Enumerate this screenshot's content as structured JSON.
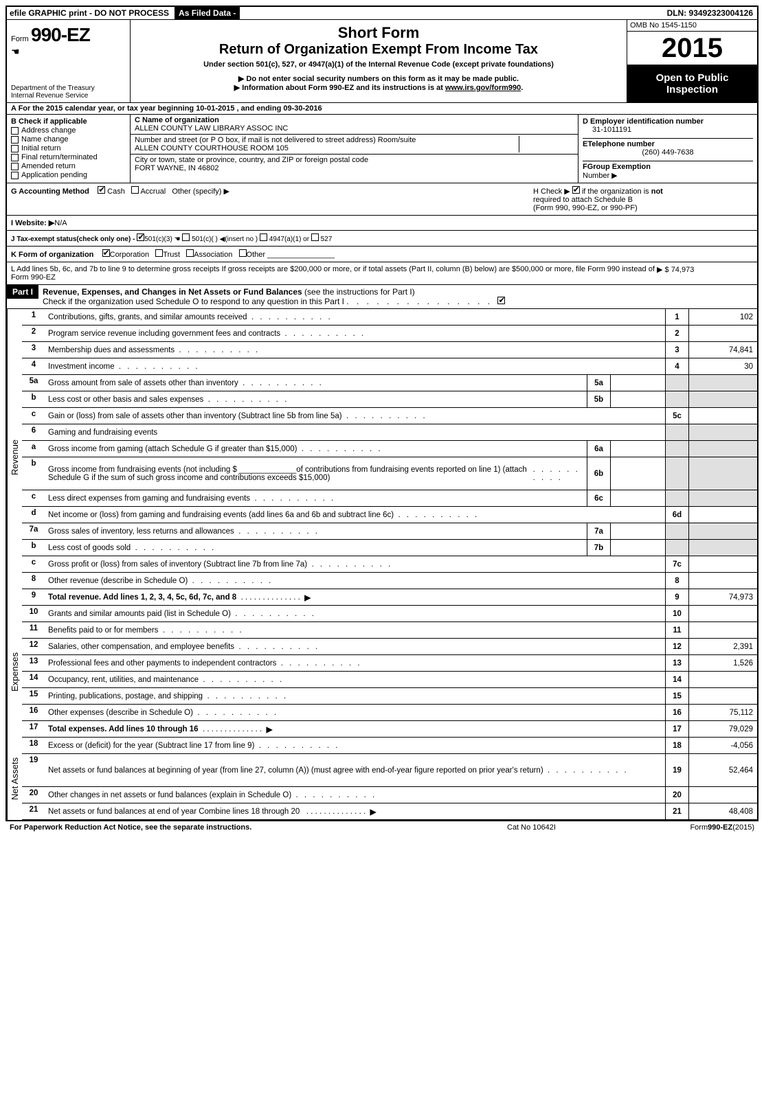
{
  "top": {
    "efile": "efile GRAPHIC print - DO NOT PROCESS",
    "asfiled": "As Filed Data -",
    "dln": "DLN: 93492323004126"
  },
  "header": {
    "form_word": "Form",
    "form_no": "990-EZ",
    "dept1": "Department of the Treasury",
    "dept2": "Internal Revenue Service",
    "short_form": "Short Form",
    "title": "Return of Organization Exempt From Income Tax",
    "under": "Under section 501(c), 527, or 4947(a)(1) of the Internal Revenue Code (except private foundations)",
    "no_ssn": "▶ Do not enter social security numbers on this form as it may be made public.",
    "info": "▶ Information about Form 990-EZ and its instructions is at ",
    "info_link": "www.irs.gov/form990",
    "omb": "OMB No 1545-1150",
    "year": "2015",
    "open1": "Open to Public",
    "open2": "Inspection"
  },
  "lineA": "A  For the 2015 calendar year, or tax year beginning 10-01-2015                         , and ending 09-30-2016",
  "sectionB": {
    "b_head": "B  Check if applicable",
    "b_items": [
      "Address change",
      "Name change",
      "Initial return",
      "Final return/terminated",
      "Amended return",
      "Application pending"
    ],
    "c_name_lbl": "C Name of organization",
    "c_name": "ALLEN COUNTY LAW LIBRARY ASSOC INC",
    "c_addr_lbl": "Number and street (or P O box, if mail is not delivered to street address) Room/suite",
    "c_addr": "ALLEN COUNTY COURTHOUSE ROOM 105",
    "c_city_lbl": "City or town, state or province, country, and ZIP or foreign postal code",
    "c_city": "FORT WAYNE, IN  46802",
    "d_lbl": "D Employer identification number",
    "d_val": "31-1011191",
    "e_lbl": "ETelephone number",
    "e_val": "(260) 449-7638",
    "f_lbl": "FGroup Exemption",
    "f_lbl2": "Number   ▶"
  },
  "rowG": {
    "g": "G Accounting Method",
    "cash": "Cash",
    "accrual": "Accrual",
    "other": "Other (specify) ▶",
    "h1": "H   Check ▶",
    "h2": "if the organization is",
    "not": "not",
    "h3": "required to attach Schedule B",
    "h4": "(Form 990, 990-EZ, or 990-PF)"
  },
  "rowI": {
    "label": "I Website: ▶",
    "val": "N/A"
  },
  "rowJ": "J Tax-exempt status(check only one) - ",
  "rowJ_501c3": "501(c)(3)",
  "rowJ_501c": "501(c)( ) ◀(insert no )",
  "rowJ_4947": "4947(a)(1) or",
  "rowJ_527": "527",
  "rowK": {
    "label": "K Form of organization",
    "corp": "Corporation",
    "trust": "Trust",
    "assoc": "Association",
    "other": "Other"
  },
  "rowL": {
    "text": "L Add lines 5b, 6c, and 7b to line 9 to determine gross receipts  If gross receipts are $200,000 or more, or if total assets (Part II, column (B) below) are $500,000 or more, file Form 990 instead of Form 990-EZ",
    "arrow": "▶ $ 74,973"
  },
  "partI": {
    "label": "Part I",
    "title": "Revenue, Expenses, and Changes in Net Assets or Fund Balances",
    "paren": "(see the instructions for Part I)",
    "check": "Check if the organization used Schedule O to respond to any question in this Part I"
  },
  "sections": {
    "revenue": "Revenue",
    "expenses": "Expenses",
    "netassets": "Net Assets"
  },
  "lines": [
    {
      "n": "1",
      "d": "Contributions, gifts, grants, and similar amounts received",
      "r": "1",
      "v": "102"
    },
    {
      "n": "2",
      "d": "Program service revenue including government fees and contracts",
      "r": "2",
      "v": ""
    },
    {
      "n": "3",
      "d": "Membership dues and assessments",
      "r": "3",
      "v": "74,841"
    },
    {
      "n": "4",
      "d": "Investment income",
      "r": "4",
      "v": "30"
    },
    {
      "n": "5a",
      "d": "Gross amount from sale of assets other than inventory",
      "mb": "5a",
      "grey": true
    },
    {
      "n": "b",
      "d": "Less  cost or other basis and sales expenses",
      "mb": "5b",
      "grey": true
    },
    {
      "n": "c",
      "d": "Gain or (loss) from sale of assets other than inventory (Subtract line 5b from line 5a)",
      "r": "5c",
      "v": ""
    },
    {
      "n": "6",
      "d": "Gaming and fundraising events",
      "nobox": true,
      "grey": true
    },
    {
      "n": "a",
      "d": "Gross income from gaming (attach Schedule G if greater than $15,000)",
      "mb": "6a",
      "grey": true
    },
    {
      "n": "b",
      "d": "Gross income from fundraising events (not including $ _____________of contributions from fundraising events reported on line 1) (attach Schedule G if the sum of such gross income and contributions exceeds $15,000)",
      "mb": "6b",
      "grey": true,
      "tall": true
    },
    {
      "n": "c",
      "d": "Less  direct expenses from gaming and fundraising events",
      "mb": "6c",
      "grey": true
    },
    {
      "n": "d",
      "d": "Net income or (loss) from gaming and fundraising events (add lines 6a and 6b and subtract line 6c)",
      "r": "6d",
      "v": ""
    },
    {
      "n": "7a",
      "d": "Gross sales of inventory, less returns and allowances",
      "mb": "7a",
      "grey": true
    },
    {
      "n": "b",
      "d": "Less  cost of goods sold",
      "mb": "7b",
      "grey": true
    },
    {
      "n": "c",
      "d": "Gross profit or (loss) from sales of inventory (Subtract line 7b from line 7a)",
      "r": "7c",
      "v": ""
    },
    {
      "n": "8",
      "d": "Other revenue (describe in Schedule O)",
      "r": "8",
      "v": ""
    },
    {
      "n": "9",
      "d": "Total revenue. Add lines 1, 2, 3, 4, 5c, 6d, 7c, and 8",
      "r": "9",
      "v": "74,973",
      "bold": true,
      "arrow": true
    }
  ],
  "exp_lines": [
    {
      "n": "10",
      "d": "Grants and similar amounts paid (list in Schedule O)",
      "r": "10",
      "v": ""
    },
    {
      "n": "11",
      "d": "Benefits paid to or for members",
      "r": "11",
      "v": ""
    },
    {
      "n": "12",
      "d": "Salaries, other compensation, and employee benefits",
      "r": "12",
      "v": "2,391"
    },
    {
      "n": "13",
      "d": "Professional fees and other payments to independent contractors",
      "r": "13",
      "v": "1,526"
    },
    {
      "n": "14",
      "d": "Occupancy, rent, utilities, and maintenance",
      "r": "14",
      "v": ""
    },
    {
      "n": "15",
      "d": "Printing, publications, postage, and shipping",
      "r": "15",
      "v": ""
    },
    {
      "n": "16",
      "d": "Other expenses (describe in Schedule O)",
      "r": "16",
      "v": "75,112"
    },
    {
      "n": "17",
      "d": "Total expenses. Add lines 10 through 16",
      "r": "17",
      "v": "79,029",
      "bold": true,
      "arrow": true
    }
  ],
  "na_lines": [
    {
      "n": "18",
      "d": "Excess or (deficit) for the year (Subtract line 17 from line 9)",
      "r": "18",
      "v": "-4,056"
    },
    {
      "n": "19",
      "d": "Net assets or fund balances at beginning of year (from line 27, column (A)) (must agree with end-of-year figure reported on prior year's return)",
      "r": "19",
      "v": "52,464",
      "tall": true
    },
    {
      "n": "20",
      "d": "Other changes in net assets or fund balances (explain in Schedule O)",
      "r": "20",
      "v": ""
    },
    {
      "n": "21",
      "d": "Net assets or fund balances at end of year  Combine lines 18 through 20",
      "r": "21",
      "v": "48,408",
      "arrow": true
    }
  ],
  "footer": {
    "left": "For Paperwork Reduction Act Notice, see the separate instructions.",
    "mid": "Cat No 10642I",
    "right": "Form",
    "right_bold": "990-EZ",
    "right_yr": "(2015)"
  }
}
